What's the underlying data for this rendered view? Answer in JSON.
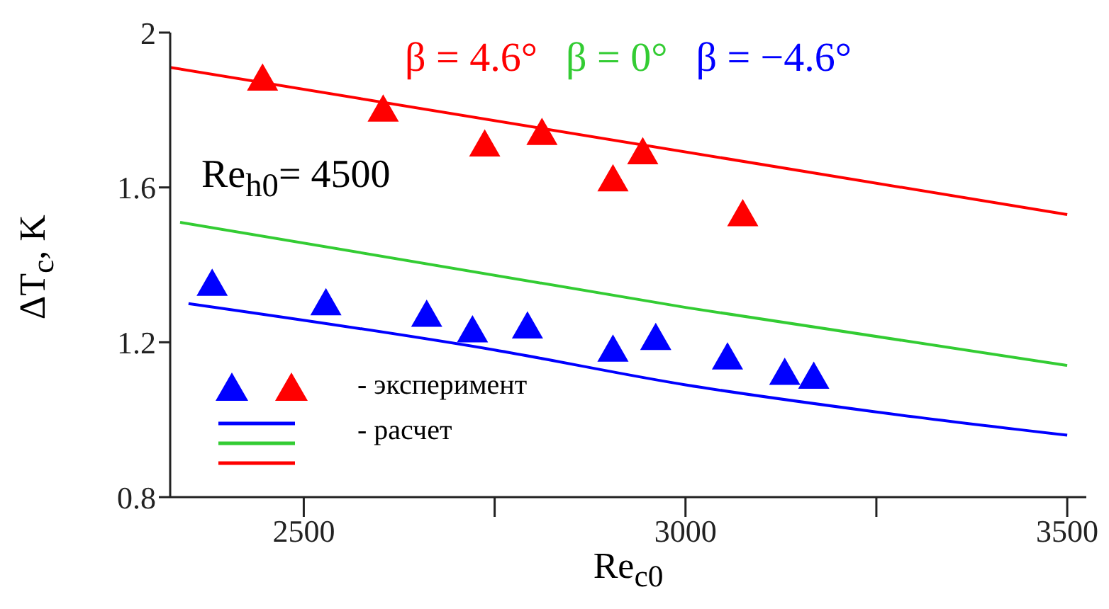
{
  "chart_data": {
    "type": "scatter",
    "xlabel": "Re$_{c0}$",
    "ylabel": "ΔT$_{c}$, K",
    "xlim": [
      2325,
      3525
    ],
    "xticks": [
      2500,
      {
        "value": 2750,
        "label": null
      },
      3000,
      {
        "value": 3250,
        "label": null
      },
      3500
    ],
    "ylim": [
      0.8,
      2
    ],
    "yticks": [
      0.8,
      1.2,
      1.6,
      2
    ],
    "grid": false,
    "legend": "bottom left",
    "annotations": [
      "Re$_{h0}$= 4500",
      "- расчет"
    ],
    "series": [
      {
        "name": "- эксперимент",
        "marker": "triangle",
        "color": "#ff0000",
        "x": [
          2446,
          2604,
          2737,
          2812,
          2905,
          2944,
          3075
        ],
        "values": [
          1.88,
          1.8,
          1.71,
          1.74,
          1.62,
          1.69,
          1.53
        ]
      },
      {
        "marker": "triangle",
        "color": "#0000ff",
        "x": [
          2380,
          2529,
          2661,
          2721,
          2793,
          2905,
          2961,
          3055,
          3130,
          3168
        ],
        "values": [
          1.35,
          1.3,
          1.27,
          1.23,
          1.24,
          1.18,
          1.21,
          1.16,
          1.12,
          1.11
        ]
      },
      {
        "type": "line",
        "name": "β = 4.6°",
        "color": "#ff0000",
        "marker": "none",
        "line_style": "solid",
        "x": [
          2325,
          3500
        ],
        "values": [
          1.91,
          1.53
        ]
      },
      {
        "type": "line",
        "name": "β = 0°",
        "color": "#33cc33",
        "marker": "none",
        "line_style": "solid",
        "x": [
          2338,
          3000,
          3500
        ],
        "values": [
          1.51,
          1.29,
          1.14
        ]
      },
      {
        "type": "line",
        "name": "β = −4.6°",
        "color": "#0000ff",
        "marker": "none",
        "line_style": "solid",
        "x": [
          2349,
          2750,
          3000,
          3250,
          3500
        ],
        "values": [
          1.3,
          1.18,
          1.09,
          1.02,
          0.96
        ]
      }
    ]
  }
}
